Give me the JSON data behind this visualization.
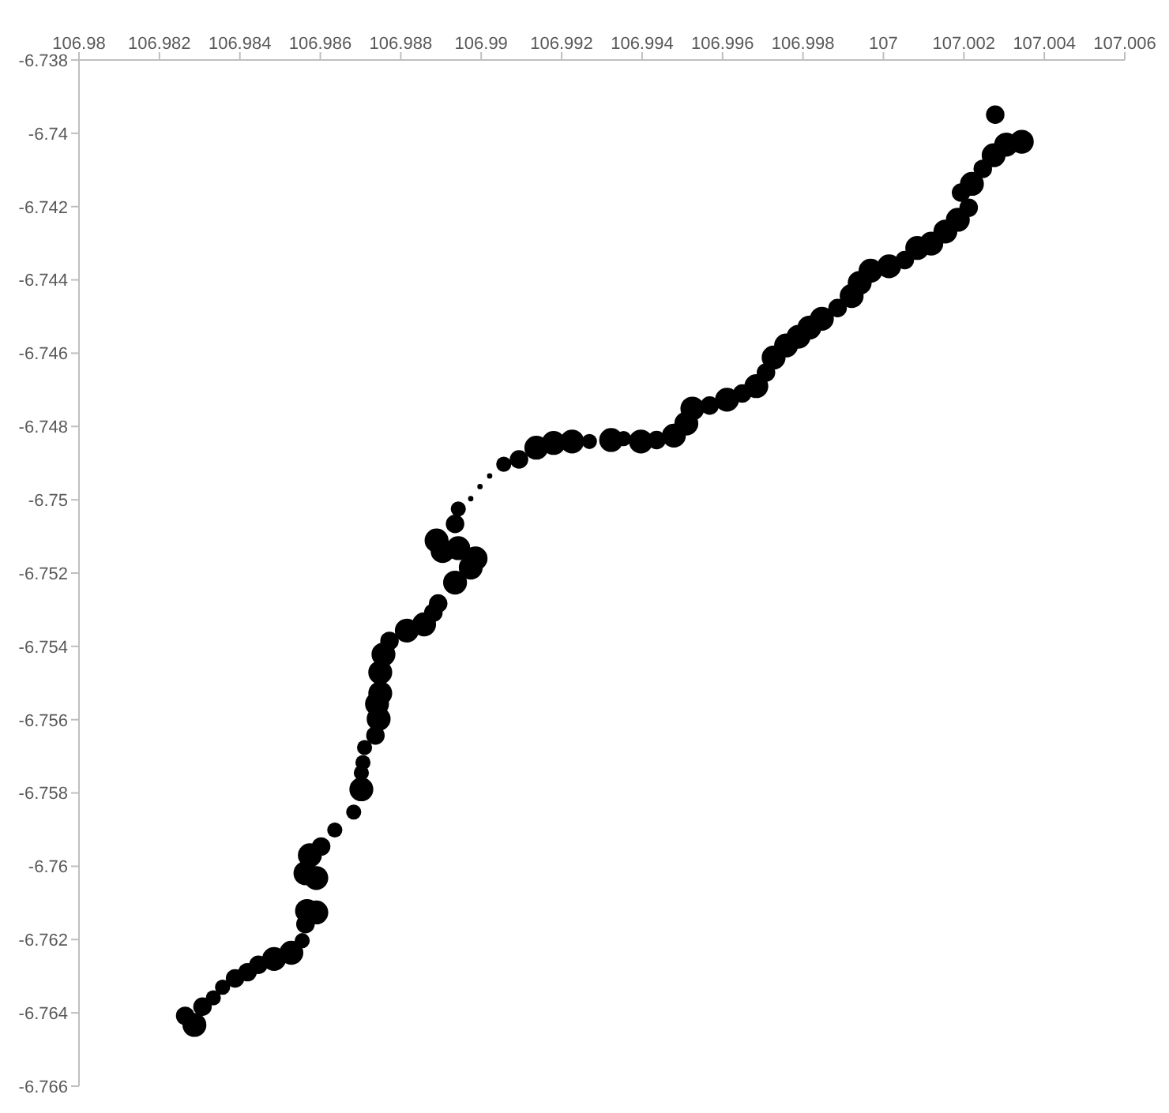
{
  "chart_data": {
    "type": "bubble",
    "color": "#000000",
    "marker": "circle",
    "grid": false,
    "legend": false,
    "xlim": [
      106.98,
      107.006
    ],
    "xticks": [
      106.98,
      106.982,
      106.984,
      106.986,
      106.988,
      106.99,
      106.992,
      106.994,
      106.996,
      106.998,
      107,
      107.002,
      107.004,
      107.006
    ],
    "ylim": [
      -6.766,
      -6.738
    ],
    "yticks": [
      -6.738,
      -6.74,
      -6.742,
      -6.744,
      -6.746,
      -6.748,
      -6.75,
      -6.752,
      -6.754,
      -6.756,
      -6.758,
      -6.76,
      -6.762,
      -6.764,
      -6.766
    ],
    "x": [
      106.98264,
      106.98287,
      106.98307,
      106.98334,
      106.98357,
      106.98388,
      106.98419,
      106.98446,
      106.98485,
      106.98528,
      106.98555,
      106.98563,
      106.98567,
      106.9859,
      106.98563,
      106.9859,
      106.98574,
      106.98602,
      106.98636,
      106.98683,
      106.98702,
      106.98702,
      106.98706,
      106.9871,
      106.98737,
      106.98745,
      106.98741,
      106.98749,
      106.98749,
      106.98757,
      106.98772,
      106.98815,
      106.98858,
      106.98881,
      106.98893,
      106.98935,
      106.98974,
      106.98986,
      106.98943,
      106.98904,
      106.98889,
      106.98935,
      106.98943,
      106.98974,
      106.98997,
      106.99021,
      106.99056,
      106.99094,
      106.99137,
      106.9918,
      106.99226,
      106.99269,
      106.99323,
      106.99354,
      106.99397,
      106.99436,
      106.99479,
      106.9951,
      106.99525,
      106.99568,
      106.99611,
      106.99649,
      106.99684,
      106.99708,
      106.99727,
      106.99758,
      106.99789,
      106.99816,
      106.99847,
      106.99886,
      106.99921,
      106.99941,
      106.99968,
      107.00014,
      107.00053,
      107.00084,
      107.00119,
      107.00154,
      107.00185,
      107.00212,
      107.00193,
      107.0022,
      107.00247,
      107.00274,
      107.00305,
      107.00344,
      107.00278
    ],
    "values": [
      -6.76408,
      -6.76433,
      -6.76383,
      -6.76359,
      -6.7633,
      -6.76306,
      -6.76289,
      -6.76269,
      -6.76253,
      -6.76236,
      -6.76203,
      -6.76158,
      -6.76122,
      -6.76126,
      -6.76019,
      -6.76032,
      -6.7597,
      -6.75946,
      -6.75901,
      -6.75852,
      -6.7579,
      -6.75745,
      -6.75717,
      -6.75676,
      -6.75643,
      -6.75598,
      -6.75557,
      -6.75528,
      -6.75471,
      -6.75422,
      -6.75385,
      -6.75357,
      -6.7534,
      -6.75308,
      -6.75283,
      -6.75226,
      -6.75185,
      -6.7516,
      -6.75132,
      -6.7514,
      -6.75111,
      -6.75066,
      -6.75025,
      -6.74997,
      -6.74964,
      -6.74935,
      -6.74903,
      -6.7489,
      -6.74858,
      -6.74845,
      -6.74841,
      -6.74841,
      -6.74837,
      -6.74833,
      -6.74841,
      -6.74837,
      -6.74825,
      -6.74792,
      -6.74751,
      -6.74743,
      -6.74727,
      -6.7471,
      -6.7469,
      -6.74653,
      -6.74612,
      -6.74579,
      -6.74555,
      -6.7453,
      -6.74506,
      -6.74477,
      -6.74444,
      -6.74408,
      -6.74375,
      -6.74363,
      -6.74346,
      -6.74313,
      -6.74301,
      -6.74268,
      -6.74236,
      -6.74203,
      -6.74162,
      -6.74138,
      -6.74097,
      -6.7406,
      -6.74031,
      -6.74023,
      -6.73949
    ],
    "sizes": [
      0.6,
      1,
      0.6,
      0.4,
      0.4,
      0.6,
      0.6,
      0.6,
      1,
      1,
      0.4,
      0.6,
      1,
      1,
      1,
      1,
      1,
      0.6,
      0.4,
      0.4,
      1,
      0.4,
      0.4,
      0.4,
      0.6,
      1,
      1,
      1,
      1,
      1,
      0.6,
      1,
      1,
      0.6,
      0.6,
      1,
      1,
      1,
      1,
      1,
      1,
      0.6,
      0.4,
      0.05,
      0.05,
      0.05,
      0.4,
      0.6,
      1,
      1,
      1,
      0.4,
      1,
      0.4,
      1,
      0.6,
      1,
      1,
      1,
      0.6,
      1,
      0.6,
      1,
      0.6,
      1,
      1,
      1,
      1,
      1,
      0.6,
      1,
      1,
      1,
      1,
      0.6,
      1,
      1,
      1,
      1,
      0.6,
      0.6,
      1,
      0.6,
      1,
      1,
      1,
      0.6
    ]
  }
}
